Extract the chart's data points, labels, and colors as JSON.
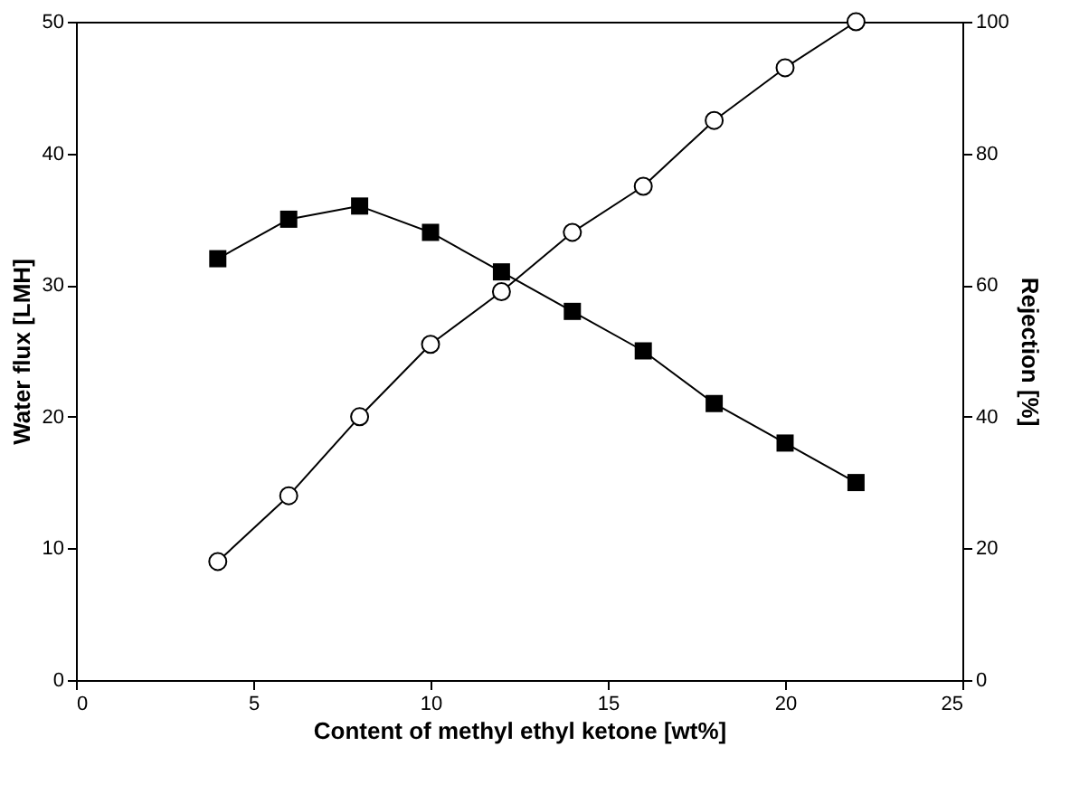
{
  "chart_data": {
    "type": "line",
    "xlabel": "Content of methyl ethyl ketone [wt%]",
    "ylabel": "Water flux [LMH]",
    "y2label": "Rejection [%]",
    "x": [
      4,
      6,
      8,
      10,
      12,
      14,
      16,
      18,
      20,
      22
    ],
    "series": [
      {
        "color": "#000000",
        "marker": "square",
        "values": [
          32,
          35,
          36,
          34,
          31,
          28,
          25,
          21,
          18,
          15
        ]
      },
      {
        "color": "#000000",
        "marker": "circle",
        "axis": "y2",
        "values": [
          18,
          28,
          40,
          51,
          59,
          68,
          75,
          85,
          93,
          100
        ]
      }
    ],
    "xlim": [
      0,
      25
    ],
    "xticks": [
      0,
      5,
      10,
      15,
      20,
      25
    ],
    "ylim": [
      0,
      50
    ],
    "yticks": [
      0,
      10,
      20,
      30,
      40,
      50
    ],
    "y2lim": [
      0,
      100
    ],
    "y2ticks": [
      0,
      20,
      40,
      60,
      80,
      100
    ],
    "grid": false,
    "line_style": "solid"
  }
}
